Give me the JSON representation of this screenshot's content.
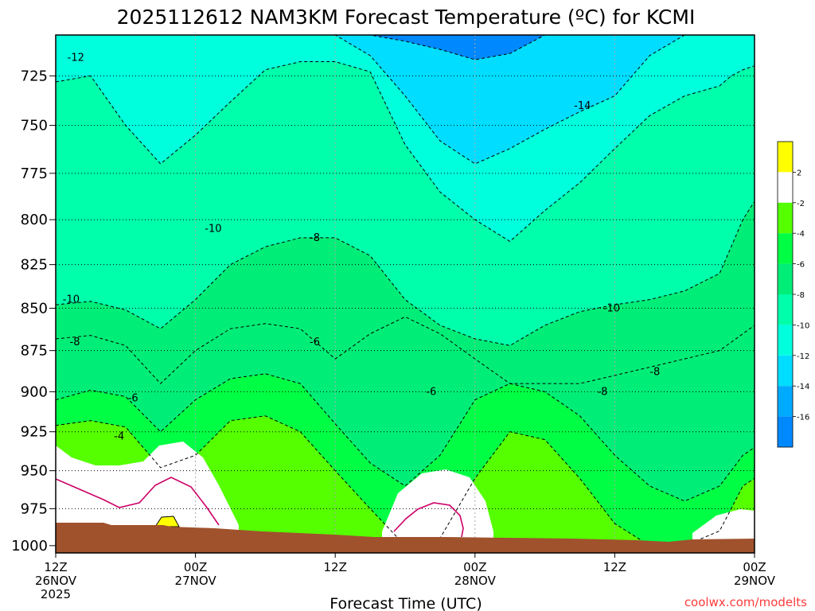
{
  "chart_data": {
    "type": "heatmap",
    "subtype": "filled-contour time-height cross-section",
    "title": "2025112612 NAM3KM Forecast Temperature (ºC) for KCMI",
    "xlabel": "Forecast Time (UTC)",
    "ylabel": "",
    "y_scale": "log pressure (mb)",
    "ylim": [
      1005,
      705
    ],
    "y_ticks": [
      725,
      750,
      775,
      800,
      825,
      850,
      875,
      900,
      925,
      950,
      975,
      1000
    ],
    "x_ticks": [
      {
        "hour": 0,
        "line1": "12Z",
        "line2": "26NOV",
        "line3": "2025"
      },
      {
        "hour": 12,
        "line1": "00Z",
        "line2": "27NOV",
        "line3": ""
      },
      {
        "hour": 24,
        "line1": "12Z",
        "line2": "",
        "line3": ""
      },
      {
        "hour": 36,
        "line1": "00Z",
        "line2": "28NOV",
        "line3": ""
      },
      {
        "hour": 48,
        "line1": "12Z",
        "line2": "",
        "line3": ""
      },
      {
        "hour": 60,
        "line1": "00Z",
        "line2": "29NOV",
        "line3": ""
      }
    ],
    "xlim_hours": [
      0,
      60
    ],
    "grid": "dotted",
    "credit": "coolwx.com/modelts",
    "colorbar": {
      "placement": "right",
      "labels": [
        "2",
        "-2",
        "-4",
        "-6",
        "-8",
        "-10",
        "-12",
        "-14",
        "-16"
      ],
      "colors": [
        "#ffff00",
        "#ffffff",
        "#55ff00",
        "#00ff44",
        "#00ee77",
        "#00ffaa",
        "#00ffdd",
        "#00ddff",
        "#00aaff",
        "#0088ff"
      ]
    },
    "isotherms": [
      {
        "value": -4,
        "pressures": [
          921,
          918,
          922,
          948,
          940,
          918,
          915,
          925,
          950,
          975,
          1000,
          995,
          955,
          925,
          930,
          955,
          985,
          1000,
          1000,
          990,
          975,
          960,
          955
        ]
      },
      {
        "value": -6,
        "pressures": [
          905,
          899,
          903,
          925,
          905,
          892,
          889,
          895,
          920,
          945,
          960,
          940,
          905,
          895,
          900,
          915,
          940,
          960,
          970,
          960,
          950,
          940,
          935
        ]
      },
      {
        "value": -8,
        "pressures": [
          868,
          866,
          872,
          895,
          875,
          862,
          859,
          862,
          880,
          865,
          855,
          865,
          880,
          895,
          895,
          895,
          890,
          885,
          880,
          875,
          870,
          865,
          860
        ]
      },
      {
        "value": -10,
        "pressures": [
          848,
          846,
          851,
          862,
          845,
          825,
          815,
          810,
          810,
          820,
          845,
          860,
          868,
          872,
          860,
          852,
          848,
          845,
          840,
          830,
          815,
          800,
          790
        ]
      },
      {
        "value": -12,
        "pressures": [
          728,
          725,
          750,
          770,
          755,
          738,
          722,
          718,
          718,
          723,
          760,
          785,
          800,
          812,
          795,
          780,
          762,
          745,
          735,
          730,
          725,
          722,
          720
        ]
      },
      {
        "value": -14,
        "pressures": [
          705,
          705,
          705,
          705,
          705,
          705,
          705,
          705,
          705,
          715,
          735,
          758,
          770,
          762,
          752,
          743,
          735,
          715,
          705,
          705,
          705,
          705,
          705
        ]
      },
      {
        "value": -16,
        "pressures": [
          705,
          705,
          705,
          705,
          705,
          705,
          705,
          705,
          705,
          705,
          708,
          712,
          717,
          714,
          705,
          705,
          705,
          705,
          705,
          705,
          705,
          705,
          705
        ]
      }
    ],
    "isotherm_hours": [
      0,
      3,
      6,
      9,
      12,
      15,
      18,
      21,
      24,
      27,
      30,
      33,
      36,
      39,
      42,
      45,
      48,
      51,
      54,
      57,
      58,
      59,
      60
    ],
    "contour_labels": [
      {
        "text": "-12",
        "hour": 1.0,
        "pressure": 716
      },
      {
        "text": "-14",
        "hour": 44.5,
        "pressure": 740
      },
      {
        "text": "-10",
        "hour": 12.8,
        "pressure": 805
      },
      {
        "text": "-8",
        "hour": 21.8,
        "pressure": 810
      },
      {
        "text": "-10",
        "hour": 0.6,
        "pressure": 845
      },
      {
        "text": "-10",
        "hour": 47.0,
        "pressure": 850
      },
      {
        "text": "-8",
        "hour": 1.2,
        "pressure": 870
      },
      {
        "text": "-6",
        "hour": 21.8,
        "pressure": 870
      },
      {
        "text": "-8",
        "hour": 51.0,
        "pressure": 888
      },
      {
        "text": "-6",
        "hour": 31.8,
        "pressure": 900
      },
      {
        "text": "-8",
        "hour": 46.5,
        "pressure": 900
      },
      {
        "text": "-6",
        "hour": 6.2,
        "pressure": 904
      },
      {
        "text": "-4",
        "hour": 5.0,
        "pressure": 928
      }
    ]
  }
}
